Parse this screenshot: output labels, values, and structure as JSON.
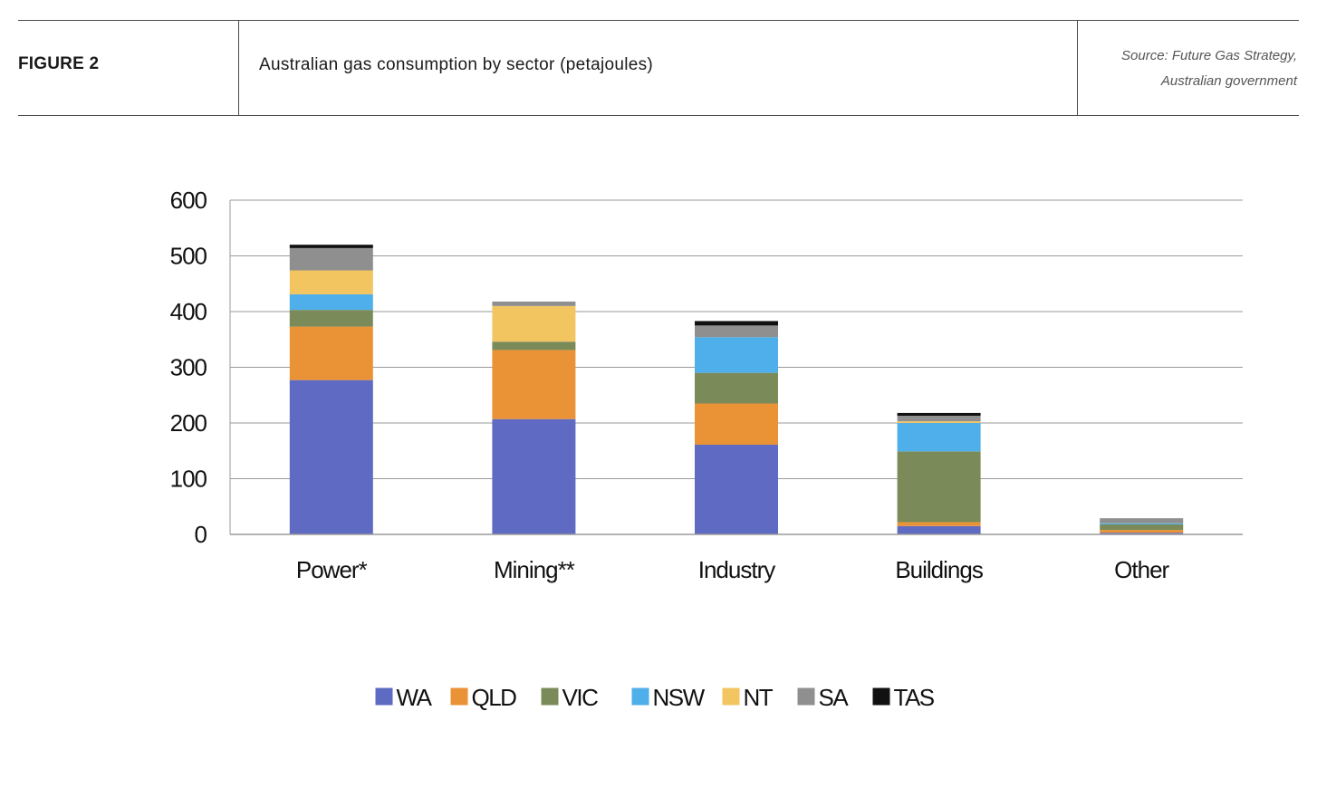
{
  "header": {
    "figure_label": "FIGURE 2",
    "title": "Australian gas consumption by sector (petajoules)",
    "source_line1": "Source:  Future Gas Strategy,",
    "source_line2": "Australian government"
  },
  "chart_data": {
    "type": "bar",
    "stacked": true,
    "title": "Australian gas consumption by sector (petajoules)",
    "xlabel": "",
    "ylabel": "",
    "ylim": [
      0,
      600
    ],
    "yticks": [
      0,
      100,
      200,
      300,
      400,
      500,
      600
    ],
    "grid": true,
    "legend_position": "bottom",
    "categories": [
      "Power*",
      "Mining**",
      "Industry",
      "Buildings",
      "Other"
    ],
    "series": [
      {
        "name": "WA",
        "color": "#5F6BC3",
        "values": [
          277,
          207,
          161,
          15,
          3
        ]
      },
      {
        "name": "QLD",
        "color": "#EA9236",
        "values": [
          96,
          124,
          74,
          7,
          5
        ]
      },
      {
        "name": "VIC",
        "color": "#7A8B59",
        "values": [
          30,
          15,
          55,
          127,
          10
        ]
      },
      {
        "name": "NSW",
        "color": "#4FAFEA",
        "values": [
          28,
          0,
          64,
          51,
          2
        ]
      },
      {
        "name": "NT",
        "color": "#F2C561",
        "values": [
          43,
          64,
          0,
          3,
          0
        ]
      },
      {
        "name": "SA",
        "color": "#8F8F8F",
        "values": [
          40,
          8,
          21,
          10,
          9
        ]
      },
      {
        "name": "TAS",
        "color": "#111111",
        "values": [
          6,
          0,
          8,
          5,
          0
        ]
      }
    ]
  }
}
